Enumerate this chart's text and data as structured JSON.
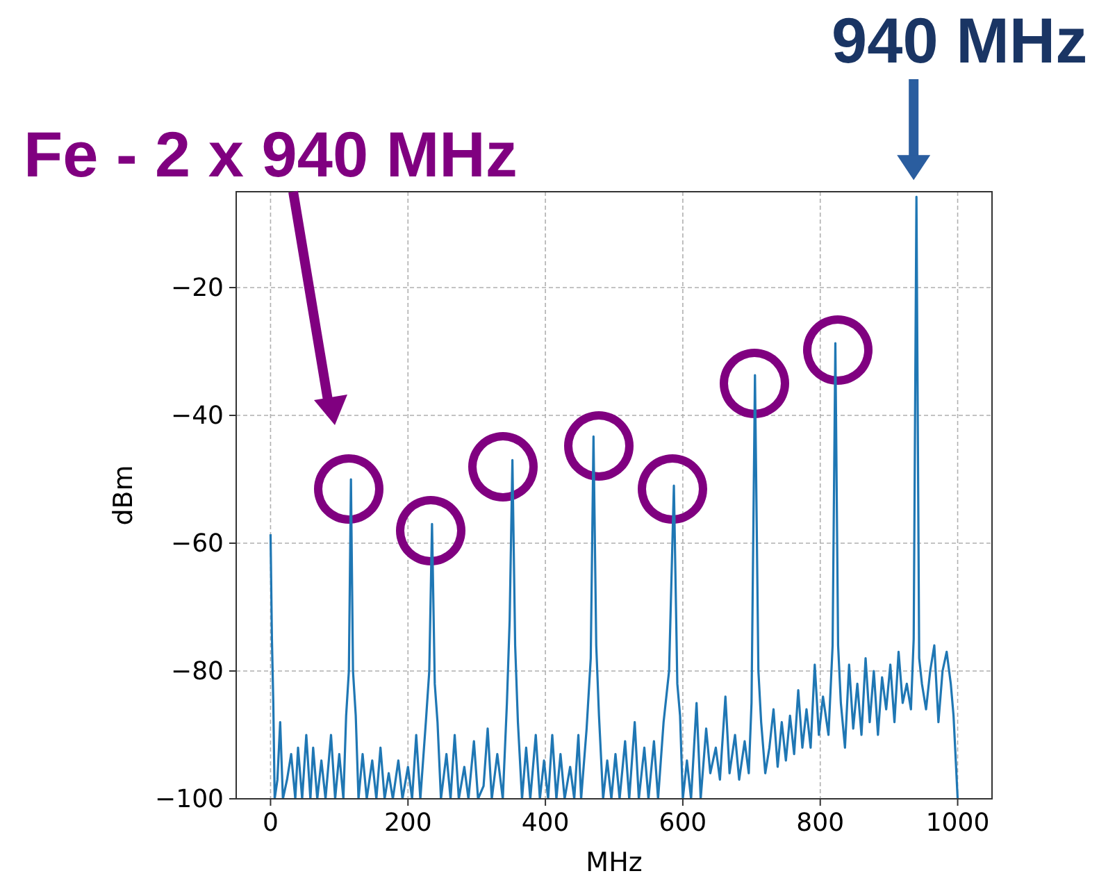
{
  "chart_data": {
    "type": "line",
    "xlabel": "MHz",
    "ylabel": "dBm",
    "grid": true,
    "xlim": [
      -50,
      1050
    ],
    "ylim": [
      -100,
      -5
    ],
    "xticks": [
      0,
      200,
      400,
      600,
      800,
      1000
    ],
    "yticks": [
      {
        "value": -100,
        "label": "−100"
      },
      {
        "value": -80,
        "label": "−80"
      },
      {
        "value": -60,
        "label": "−60"
      },
      {
        "value": -40,
        "label": "−40"
      },
      {
        "value": -20,
        "label": "−20"
      }
    ],
    "annotations": [
      "Fe - 2 x 940 MHz",
      {
        "text": "940 MHz",
        "x": 940,
        "y": -5.8
      }
    ],
    "series": [
      {
        "color": "#1f77b4",
        "x": [
          0,
          2,
          4,
          6,
          10,
          14,
          18,
          24,
          30,
          36,
          40,
          46,
          52,
          58,
          62,
          68,
          74,
          80,
          88,
          94,
          100,
          106,
          110,
          114,
          117,
          120,
          124,
          128,
          134,
          140,
          148,
          154,
          160,
          166,
          172,
          178,
          186,
          192,
          200,
          206,
          212,
          218,
          226,
          231,
          235,
          239,
          243,
          248,
          256,
          262,
          268,
          274,
          282,
          288,
          296,
          302,
          310,
          316,
          322,
          330,
          338,
          344,
          348,
          352,
          356,
          360,
          366,
          372,
          378,
          386,
          392,
          398,
          404,
          410,
          416,
          422,
          428,
          436,
          442,
          448,
          452,
          460,
          466,
          470,
          474,
          478,
          484,
          490,
          496,
          502,
          508,
          516,
          522,
          530,
          536,
          544,
          550,
          558,
          564,
          572,
          580,
          587,
          592,
          596,
          600,
          606,
          612,
          620,
          626,
          634,
          640,
          648,
          654,
          662,
          668,
          676,
          682,
          690,
          696,
          700,
          705,
          710,
          714,
          720,
          726,
          732,
          738,
          744,
          750,
          756,
          762,
          768,
          774,
          780,
          786,
          792,
          798,
          804,
          812,
          818,
          822,
          826,
          830,
          836,
          842,
          848,
          854,
          860,
          866,
          872,
          878,
          884,
          890,
          896,
          902,
          908,
          914,
          920,
          926,
          932,
          936,
          940,
          944,
          948,
          954,
          960,
          966,
          972,
          978,
          984,
          990,
          994,
          1000
        ],
        "values": [
          -58.6,
          -75,
          -85,
          -100,
          -97,
          -88,
          -100,
          -97,
          -93,
          -100,
          -92,
          -100,
          -90,
          -100,
          -92,
          -100,
          -94,
          -100,
          -90,
          -100,
          -93,
          -100,
          -87,
          -80,
          -50,
          -80,
          -87,
          -100,
          -93,
          -100,
          -94,
          -100,
          -92,
          -100,
          -96,
          -100,
          -94,
          -100,
          -95,
          -100,
          -90,
          -100,
          -88,
          -80,
          -57,
          -82,
          -88,
          -100,
          -93,
          -100,
          -90,
          -100,
          -95,
          -100,
          -91,
          -100,
          -98,
          -89,
          -100,
          -93,
          -100,
          -85,
          -72,
          -47,
          -76,
          -88,
          -100,
          -92,
          -100,
          -90,
          -100,
          -94,
          -100,
          -90,
          -100,
          -93,
          -100,
          -95,
          -100,
          -90,
          -100,
          -89,
          -78,
          -43.3,
          -76,
          -87,
          -100,
          -94,
          -100,
          -93,
          -100,
          -91,
          -100,
          -88,
          -100,
          -92,
          -100,
          -91,
          -100,
          -88,
          -80,
          -51,
          -82,
          -87,
          -100,
          -94,
          -100,
          -85,
          -100,
          -89,
          -96,
          -92,
          -97,
          -84,
          -96,
          -90,
          -97,
          -91,
          -96,
          -85,
          -33.7,
          -80,
          -88,
          -96,
          -92,
          -86,
          -95,
          -88,
          -94,
          -87,
          -93,
          -83,
          -92,
          -86,
          -92,
          -79,
          -90,
          -84,
          -90,
          -76,
          -28.7,
          -76,
          -85,
          -92,
          -79,
          -89,
          -82,
          -90,
          -78,
          -88,
          -80,
          -90,
          -81,
          -86,
          -79,
          -88,
          -77,
          -85,
          -82,
          -86,
          -75,
          -5.8,
          -78,
          -82,
          -86,
          -80,
          -76,
          -88,
          -80,
          -77,
          -82,
          -87,
          -100
        ]
      }
    ]
  }
}
